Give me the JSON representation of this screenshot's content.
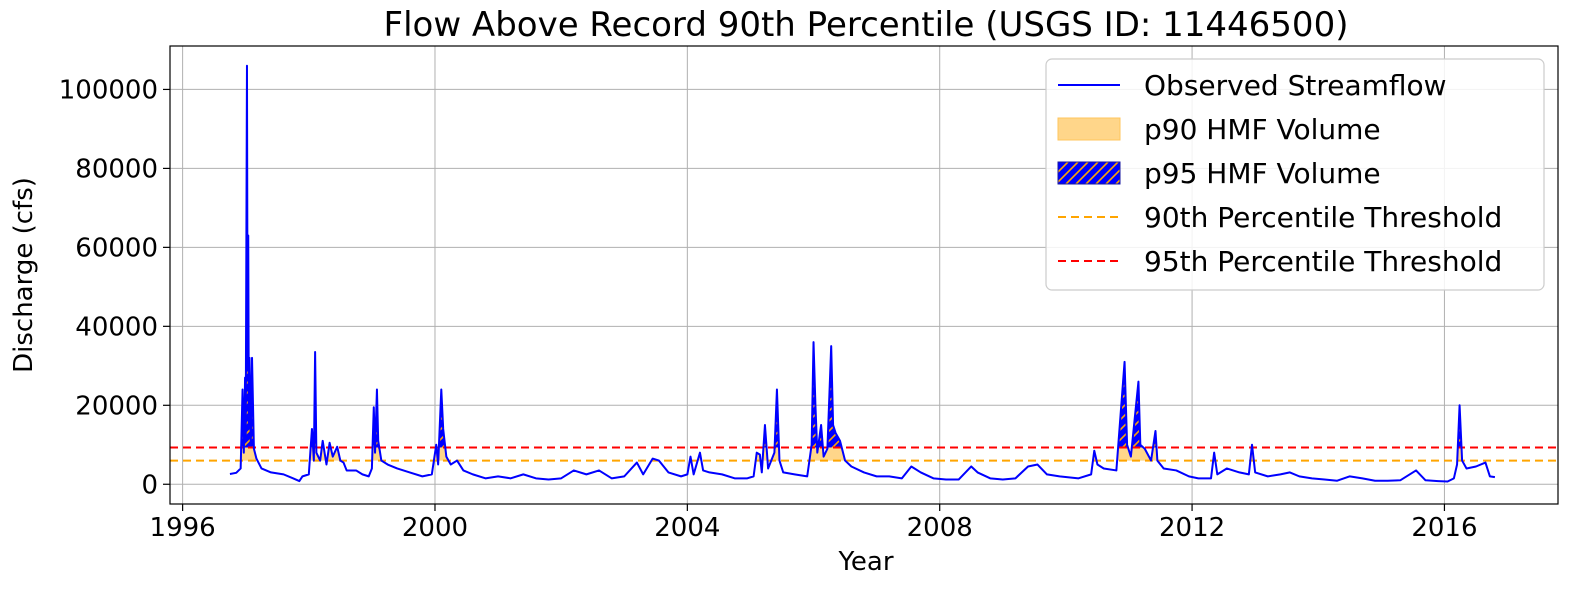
{
  "chart_data": {
    "type": "line",
    "title": "Flow Above Record 90th Percentile (USGS ID: 11446500)",
    "xlabel": "Year",
    "ylabel": "Discharge (cfs)",
    "xlim": [
      1995.8,
      2017.8
    ],
    "ylim": [
      -5000,
      111000
    ],
    "xticks": [
      1996,
      2000,
      2004,
      2008,
      2012,
      2016
    ],
    "xtick_labels": [
      "1996",
      "2000",
      "2004",
      "2008",
      "2012",
      "2016"
    ],
    "yticks": [
      0,
      20000,
      40000,
      60000,
      80000,
      100000
    ],
    "ytick_labels": [
      "0",
      "20000",
      "40000",
      "60000",
      "80000",
      "100000"
    ],
    "grid": true,
    "legend_position": "top-right",
    "colors": {
      "observed": "#0000ff",
      "p90_fill": "#ffd68a",
      "p95_fill": "#0000ff",
      "p95_hatch": "#ffa500",
      "p90_line": "#ffa500",
      "p95_line": "#ff0000"
    },
    "thresholds": {
      "p90": 6000,
      "p95": 9300
    },
    "legend": [
      {
        "label": "Observed Streamflow",
        "kind": "line",
        "color": "#0000ff"
      },
      {
        "label": "p90 HMF Volume",
        "kind": "fill",
        "color": "#ffd68a"
      },
      {
        "label": "p95 HMF Volume",
        "kind": "hatch",
        "color": "#0000ff"
      },
      {
        "label": "90th Percentile Threshold",
        "kind": "dashed",
        "color": "#ffa500"
      },
      {
        "label": "95th Percentile Threshold",
        "kind": "dashed",
        "color": "#ff0000"
      }
    ],
    "series": [
      {
        "name": "Observed Streamflow",
        "points": [
          [
            1996.75,
            2600
          ],
          [
            1996.85,
            2900
          ],
          [
            1996.92,
            4000
          ],
          [
            1996.95,
            24000
          ],
          [
            1996.97,
            8000
          ],
          [
            1996.99,
            27000
          ],
          [
            1997.0,
            12000
          ],
          [
            1997.02,
            106000
          ],
          [
            1997.03,
            30000
          ],
          [
            1997.04,
            63000
          ],
          [
            1997.05,
            15000
          ],
          [
            1997.06,
            32000
          ],
          [
            1997.08,
            10000
          ],
          [
            1997.1,
            32000
          ],
          [
            1997.13,
            9000
          ],
          [
            1997.17,
            6500
          ],
          [
            1997.25,
            4000
          ],
          [
            1997.4,
            3000
          ],
          [
            1997.6,
            2500
          ],
          [
            1997.75,
            1500
          ],
          [
            1997.85,
            800
          ],
          [
            1997.9,
            2000
          ],
          [
            1998.0,
            2500
          ],
          [
            1998.05,
            14000
          ],
          [
            1998.08,
            6000
          ],
          [
            1998.1,
            33500
          ],
          [
            1998.12,
            8000
          ],
          [
            1998.18,
            6000
          ],
          [
            1998.22,
            11000
          ],
          [
            1998.28,
            5000
          ],
          [
            1998.33,
            10500
          ],
          [
            1998.38,
            7000
          ],
          [
            1998.45,
            9500
          ],
          [
            1998.5,
            6000
          ],
          [
            1998.55,
            5500
          ],
          [
            1998.6,
            3500
          ],
          [
            1998.75,
            3500
          ],
          [
            1998.85,
            2500
          ],
          [
            1998.95,
            2000
          ],
          [
            1999.0,
            4000
          ],
          [
            1999.03,
            19500
          ],
          [
            1999.05,
            8000
          ],
          [
            1999.08,
            24000
          ],
          [
            1999.1,
            11000
          ],
          [
            1999.15,
            6000
          ],
          [
            1999.25,
            5000
          ],
          [
            1999.4,
            4000
          ],
          [
            1999.6,
            3000
          ],
          [
            1999.8,
            2000
          ],
          [
            1999.95,
            2500
          ],
          [
            2000.02,
            10000
          ],
          [
            2000.05,
            5000
          ],
          [
            2000.1,
            24000
          ],
          [
            2000.13,
            14000
          ],
          [
            2000.18,
            7000
          ],
          [
            2000.25,
            5000
          ],
          [
            2000.35,
            6000
          ],
          [
            2000.45,
            3500
          ],
          [
            2000.6,
            2500
          ],
          [
            2000.8,
            1500
          ],
          [
            2001.0,
            2000
          ],
          [
            2001.2,
            1500
          ],
          [
            2001.4,
            2500
          ],
          [
            2001.6,
            1500
          ],
          [
            2001.8,
            1200
          ],
          [
            2002.0,
            1500
          ],
          [
            2002.2,
            3500
          ],
          [
            2002.4,
            2500
          ],
          [
            2002.6,
            3500
          ],
          [
            2002.8,
            1500
          ],
          [
            2003.0,
            2000
          ],
          [
            2003.2,
            5500
          ],
          [
            2003.3,
            2500
          ],
          [
            2003.45,
            6500
          ],
          [
            2003.55,
            6000
          ],
          [
            2003.7,
            3000
          ],
          [
            2003.9,
            2000
          ],
          [
            2004.0,
            2500
          ],
          [
            2004.05,
            7000
          ],
          [
            2004.1,
            2500
          ],
          [
            2004.2,
            8000
          ],
          [
            2004.25,
            3500
          ],
          [
            2004.35,
            3000
          ],
          [
            2004.55,
            2500
          ],
          [
            2004.75,
            1500
          ],
          [
            2004.95,
            1500
          ],
          [
            2005.05,
            2000
          ],
          [
            2005.1,
            8000
          ],
          [
            2005.15,
            7500
          ],
          [
            2005.18,
            3000
          ],
          [
            2005.23,
            15000
          ],
          [
            2005.28,
            4000
          ],
          [
            2005.38,
            8000
          ],
          [
            2005.42,
            24000
          ],
          [
            2005.46,
            6000
          ],
          [
            2005.52,
            3000
          ],
          [
            2005.7,
            2500
          ],
          [
            2005.9,
            2000
          ],
          [
            2005.97,
            10000
          ],
          [
            2006.0,
            36000
          ],
          [
            2006.03,
            20000
          ],
          [
            2006.06,
            8000
          ],
          [
            2006.12,
            15000
          ],
          [
            2006.16,
            7000
          ],
          [
            2006.22,
            9000
          ],
          [
            2006.28,
            35000
          ],
          [
            2006.31,
            15000
          ],
          [
            2006.35,
            13000
          ],
          [
            2006.42,
            11000
          ],
          [
            2006.5,
            6000
          ],
          [
            2006.6,
            4500
          ],
          [
            2006.8,
            3000
          ],
          [
            2007.0,
            2000
          ],
          [
            2007.2,
            2000
          ],
          [
            2007.4,
            1500
          ],
          [
            2007.55,
            4500
          ],
          [
            2007.7,
            3000
          ],
          [
            2007.9,
            1500
          ],
          [
            2008.1,
            1200
          ],
          [
            2008.3,
            1200
          ],
          [
            2008.5,
            4500
          ],
          [
            2008.6,
            3000
          ],
          [
            2008.8,
            1500
          ],
          [
            2009.0,
            1200
          ],
          [
            2009.2,
            1500
          ],
          [
            2009.4,
            4500
          ],
          [
            2009.55,
            5000
          ],
          [
            2009.7,
            2500
          ],
          [
            2009.9,
            2000
          ],
          [
            2010.2,
            1500
          ],
          [
            2010.4,
            2500
          ],
          [
            2010.45,
            8500
          ],
          [
            2010.5,
            5000
          ],
          [
            2010.6,
            4000
          ],
          [
            2010.8,
            3500
          ],
          [
            2010.93,
            31000
          ],
          [
            2010.97,
            10000
          ],
          [
            2011.03,
            7000
          ],
          [
            2011.15,
            26000
          ],
          [
            2011.18,
            10000
          ],
          [
            2011.25,
            9000
          ],
          [
            2011.35,
            6000
          ],
          [
            2011.42,
            13500
          ],
          [
            2011.45,
            6000
          ],
          [
            2011.55,
            4000
          ],
          [
            2011.75,
            3500
          ],
          [
            2011.95,
            2000
          ],
          [
            2012.1,
            1500
          ],
          [
            2012.3,
            1500
          ],
          [
            2012.35,
            8000
          ],
          [
            2012.4,
            2500
          ],
          [
            2012.55,
            4000
          ],
          [
            2012.75,
            3000
          ],
          [
            2012.9,
            2500
          ],
          [
            2012.95,
            10000
          ],
          [
            2013.0,
            3000
          ],
          [
            2013.2,
            2000
          ],
          [
            2013.4,
            2500
          ],
          [
            2013.55,
            3000
          ],
          [
            2013.7,
            2000
          ],
          [
            2013.9,
            1500
          ],
          [
            2014.1,
            1200
          ],
          [
            2014.3,
            900
          ],
          [
            2014.5,
            2000
          ],
          [
            2014.7,
            1500
          ],
          [
            2014.9,
            900
          ],
          [
            2015.1,
            900
          ],
          [
            2015.3,
            1000
          ],
          [
            2015.55,
            3500
          ],
          [
            2015.7,
            1000
          ],
          [
            2015.9,
            800
          ],
          [
            2016.05,
            700
          ],
          [
            2016.15,
            1500
          ],
          [
            2016.2,
            5000
          ],
          [
            2016.24,
            20000
          ],
          [
            2016.28,
            6000
          ],
          [
            2016.35,
            4000
          ],
          [
            2016.5,
            4500
          ],
          [
            2016.65,
            5500
          ],
          [
            2016.72,
            2000
          ],
          [
            2016.8,
            1800
          ]
        ]
      }
    ]
  }
}
